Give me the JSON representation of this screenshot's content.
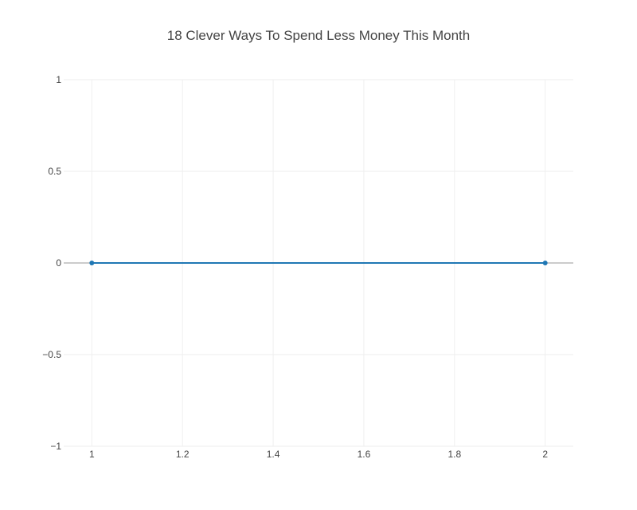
{
  "chart_data": {
    "type": "line",
    "title": "18 Clever Ways To Spend Less Money This Month",
    "xlabel": "",
    "ylabel": "",
    "x": [
      1,
      2
    ],
    "series": [
      {
        "values": [
          0,
          0
        ],
        "color": "#1f77b4"
      }
    ],
    "xlim": [
      0.938,
      2.062
    ],
    "ylim": [
      -1,
      1
    ],
    "x_ticks": [
      1,
      1.2,
      1.4,
      1.6,
      1.8,
      2
    ],
    "x_tick_labels": [
      "1",
      "1.2",
      "1.4",
      "1.6",
      "1.8",
      "2"
    ],
    "y_ticks": [
      1,
      0.5,
      0,
      -0.5,
      -1
    ],
    "y_tick_labels": [
      "1",
      "0.5",
      "0",
      "−0.5",
      "−1"
    ],
    "grid": true,
    "legend": "none",
    "colors": {
      "series": "#1f77b4",
      "grid": "#eeeeee",
      "text": "#444444",
      "zero_line": "#444444",
      "background": "#ffffff"
    }
  }
}
